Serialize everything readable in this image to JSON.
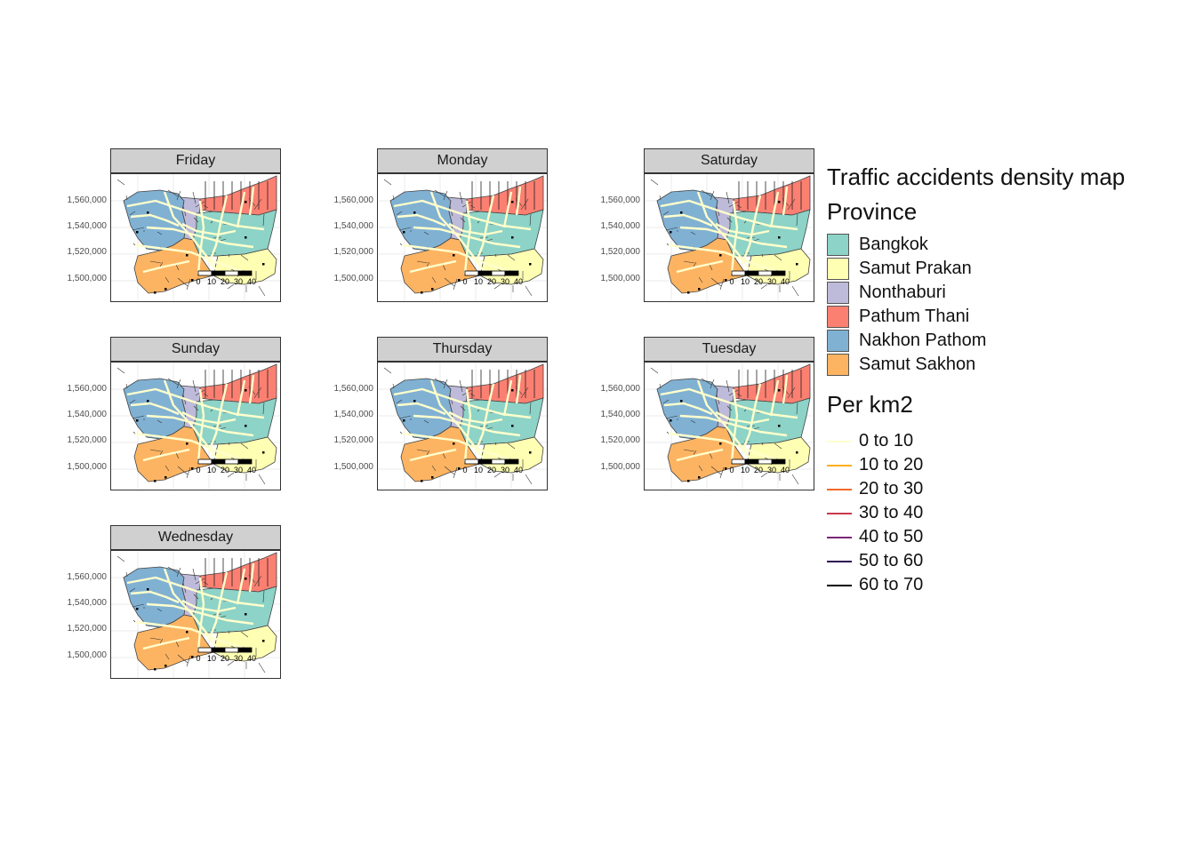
{
  "legend": {
    "title": "Traffic accidents density map",
    "province": {
      "title": "Province",
      "items": [
        {
          "label": "Bangkok",
          "color": "#8dd3c7"
        },
        {
          "label": "Samut Prakan",
          "color": "#ffffb3"
        },
        {
          "label": "Nonthaburi",
          "color": "#bebada"
        },
        {
          "label": "Pathum Thani",
          "color": "#fb8072"
        },
        {
          "label": "Nakhon Pathom",
          "color": "#80b1d3"
        },
        {
          "label": "Samut Sakhon",
          "color": "#fdb462"
        }
      ]
    },
    "density": {
      "title": "Per km2",
      "items": [
        {
          "label": "0 to 10",
          "color": "#ffffcc"
        },
        {
          "label": "10 to 20",
          "color": "#fdae1a"
        },
        {
          "label": "20 to 30",
          "color": "#f06a2a"
        },
        {
          "label": "30 to 40",
          "color": "#c8384a"
        },
        {
          "label": "40 to 50",
          "color": "#7c2578"
        },
        {
          "label": "50 to 60",
          "color": "#2d0f55"
        },
        {
          "label": "60 to 70",
          "color": "#000004"
        }
      ]
    }
  },
  "panels": [
    {
      "day": "Friday"
    },
    {
      "day": "Monday"
    },
    {
      "day": "Saturday"
    },
    {
      "day": "Sunday"
    },
    {
      "day": "Thursday"
    },
    {
      "day": "Tuesday"
    },
    {
      "day": "Wednesday"
    }
  ],
  "y_axis": {
    "ticks": [
      "1,560,000",
      "1,540,000",
      "1,520,000",
      "1,500,000"
    ]
  },
  "scale_bar": {
    "labels": [
      "0",
      "10",
      "20",
      "30",
      "40"
    ]
  }
}
